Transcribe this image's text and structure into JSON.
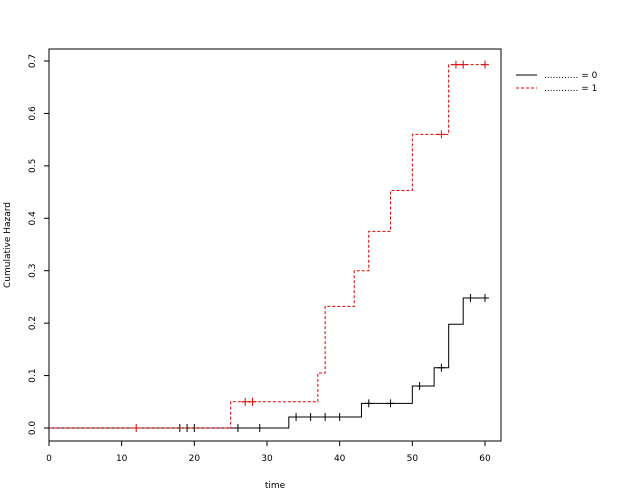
{
  "chart_data": {
    "type": "line",
    "step": true,
    "title": "",
    "xlabel": "time",
    "ylabel": "Cumulative Hazard",
    "xlim": [
      0,
      62
    ],
    "ylim": [
      0,
      0.72
    ],
    "x_ticks": [
      0,
      10,
      20,
      30,
      40,
      50,
      60
    ],
    "y_ticks": [
      0.0,
      0.1,
      0.2,
      0.3,
      0.4,
      0.5,
      0.6,
      0.7
    ],
    "x_tick_labels": [
      "0",
      "10",
      "20",
      "30",
      "40",
      "50",
      "60"
    ],
    "y_tick_labels": [
      "0.0",
      "0.1",
      "0.2",
      "0.3",
      "0.4",
      "0.5",
      "0.6",
      "0.7"
    ],
    "grid": false,
    "legend_position": "top-right (outside plot)",
    "series": [
      {
        "name": "............ = 0",
        "color": "#000000",
        "dash": "solid",
        "steps": [
          [
            0,
            0
          ],
          [
            33,
            0.021
          ],
          [
            43,
            0.047
          ],
          [
            50,
            0.08
          ],
          [
            53,
            0.115
          ],
          [
            55,
            0.198
          ],
          [
            57,
            0.248
          ],
          [
            60,
            0.248
          ]
        ],
        "censor": [
          18,
          19,
          20,
          26,
          29,
          34,
          36,
          38,
          40,
          44,
          47,
          51,
          54,
          58,
          60
        ]
      },
      {
        "name": "............ = 1",
        "color": "#dd0000",
        "dash": "dashed",
        "steps": [
          [
            0,
            0
          ],
          [
            25,
            0.05
          ],
          [
            37,
            0.105
          ],
          [
            38,
            0.232
          ],
          [
            42,
            0.3
          ],
          [
            44,
            0.375
          ],
          [
            47,
            0.453
          ],
          [
            50,
            0.56
          ],
          [
            55,
            0.693
          ],
          [
            60,
            0.693
          ]
        ],
        "censor": [
          12,
          27,
          28,
          54,
          56,
          57,
          60
        ]
      }
    ]
  }
}
